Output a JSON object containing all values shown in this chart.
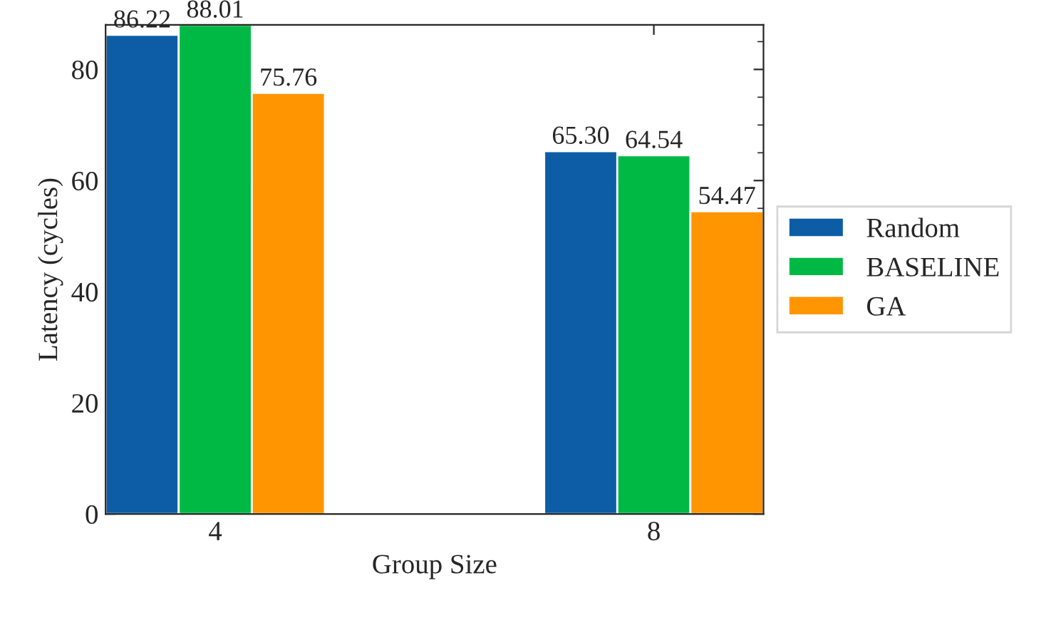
{
  "chart_data": {
    "type": "bar",
    "xlabel": "Group Size",
    "ylabel": "Latency (cycles)",
    "categories": [
      "4",
      "8"
    ],
    "series": [
      {
        "name": "Random",
        "color": "#0c5da5",
        "values": [
          86.22,
          65.3
        ],
        "value_labels": [
          "86.22",
          "65.30"
        ]
      },
      {
        "name": "BASELINE",
        "color": "#00b945",
        "values": [
          88.01,
          64.54
        ],
        "value_labels": [
          "88.01",
          "64.54"
        ]
      },
      {
        "name": "GA",
        "color": "#ff9500",
        "values": [
          75.76,
          54.47
        ],
        "value_labels": [
          "75.76",
          "54.47"
        ]
      }
    ],
    "ylim": [
      0,
      88.01
    ],
    "yticks": [
      0,
      20,
      40,
      60,
      80
    ],
    "grid": false,
    "legend": "right"
  }
}
